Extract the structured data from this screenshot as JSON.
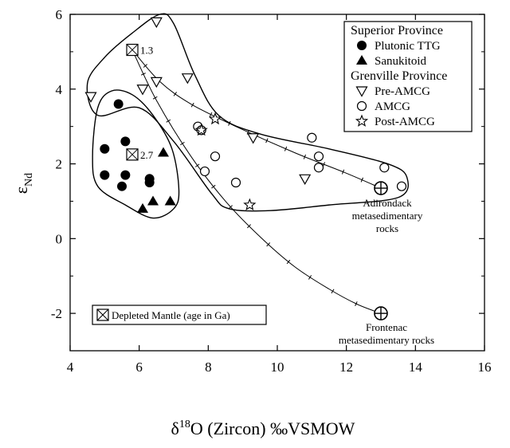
{
  "chart_data": {
    "type": "scatter",
    "xlabel": {
      "prefix": "δ",
      "sup": "18",
      "rest": "O (Zircon) ‰VSMOW"
    },
    "ylabel": {
      "main": "ε",
      "sub": "Nd"
    },
    "xlim": [
      4,
      16
    ],
    "ylim": [
      -3,
      6
    ],
    "x_ticks": [
      4,
      6,
      8,
      10,
      12,
      14,
      16
    ],
    "y_ticks": [
      -2,
      0,
      2,
      4,
      6
    ],
    "y_tick_labels": [
      "-2",
      "0",
      "2",
      "4",
      "6"
    ],
    "legend": {
      "position": "top-right",
      "groups": [
        {
          "title": "Superior Province",
          "items": [
            {
              "label": "Plutonic TTG",
              "marker": "filled-circle"
            },
            {
              "label": "Sanukitoid",
              "marker": "filled-triangle"
            }
          ]
        },
        {
          "title": "Grenville Province",
          "items": [
            {
              "label": "Pre-AMCG",
              "marker": "open-down-triangle"
            },
            {
              "label": "AMCG",
              "marker": "open-circle"
            },
            {
              "label": "Post-AMCG",
              "marker": "open-star"
            }
          ]
        }
      ]
    },
    "series": [
      {
        "name": "Plutonic TTG",
        "marker": "filled-circle",
        "points": [
          [
            5.4,
            3.6
          ],
          [
            5.0,
            2.4
          ],
          [
            5.6,
            2.6
          ],
          [
            5.0,
            1.7
          ],
          [
            5.6,
            1.7
          ],
          [
            5.5,
            1.4
          ],
          [
            6.3,
            1.5
          ],
          [
            6.3,
            1.6
          ]
        ]
      },
      {
        "name": "Sanukitoid",
        "marker": "filled-triangle",
        "points": [
          [
            6.7,
            2.3
          ],
          [
            6.1,
            0.8
          ],
          [
            6.4,
            1.0
          ],
          [
            6.9,
            1.0
          ]
        ]
      },
      {
        "name": "Pre-AMCG",
        "marker": "open-down-triangle",
        "points": [
          [
            4.6,
            3.8
          ],
          [
            6.5,
            5.8
          ],
          [
            6.1,
            4.0
          ],
          [
            6.5,
            4.2
          ],
          [
            7.4,
            4.3
          ],
          [
            9.3,
            2.7
          ],
          [
            10.8,
            1.6
          ]
        ]
      },
      {
        "name": "AMCG",
        "marker": "open-circle",
        "points": [
          [
            7.7,
            3.0
          ],
          [
            7.8,
            2.9
          ],
          [
            7.9,
            1.8
          ],
          [
            8.2,
            2.2
          ],
          [
            8.8,
            1.5
          ],
          [
            11.0,
            2.7
          ],
          [
            11.2,
            2.2
          ],
          [
            11.2,
            1.9
          ],
          [
            13.1,
            1.9
          ],
          [
            13.6,
            1.4
          ]
        ]
      },
      {
        "name": "Post-AMCG",
        "marker": "open-star",
        "points": [
          [
            7.8,
            2.9
          ],
          [
            8.2,
            3.2
          ],
          [
            9.2,
            0.9
          ]
        ]
      }
    ],
    "depleted_mantle_points": [
      {
        "x": 5.8,
        "y": 5.05,
        "label": "1.3"
      },
      {
        "x": 5.8,
        "y": 2.25,
        "label": "2.7"
      }
    ],
    "mixing_curves": [
      {
        "from": "1.3 Ga depleted mantle",
        "to": "Adirondack metasedimentary rocks",
        "points": [
          [
            5.8,
            5.05
          ],
          [
            6.6,
            4.2
          ],
          [
            7.5,
            3.6
          ],
          [
            8.8,
            3.0
          ],
          [
            10.5,
            2.3
          ],
          [
            12.0,
            1.75
          ],
          [
            13.0,
            1.35
          ]
        ]
      },
      {
        "from": "1.3 Ga depleted mantle",
        "to": "Frontenac metasedimentary rocks",
        "points": [
          [
            5.8,
            5.05
          ],
          [
            6.5,
            3.7
          ],
          [
            7.5,
            2.2
          ],
          [
            8.5,
            1.0
          ],
          [
            9.5,
            0.05
          ],
          [
            10.5,
            -0.75
          ],
          [
            11.5,
            -1.35
          ],
          [
            12.3,
            -1.75
          ],
          [
            13.0,
            -2.0
          ]
        ]
      }
    ],
    "endmembers": [
      {
        "name": "Adirondack",
        "x": 13.0,
        "y": 1.35,
        "label_lines": [
          "Adirondack",
          "metasedimentary",
          "rocks"
        ]
      },
      {
        "name": "Frontenac",
        "x": 13.0,
        "y": -2.0,
        "label_lines": [
          "Frontenac",
          "metasedimentary rocks"
        ]
      }
    ],
    "fields": [
      {
        "name": "Superior Province field",
        "outline": [
          [
            4.8,
            3.5
          ],
          [
            5.2,
            3.95
          ],
          [
            5.8,
            3.85
          ],
          [
            6.4,
            3.3
          ],
          [
            6.95,
            2.4
          ],
          [
            7.15,
            1.3
          ],
          [
            7.0,
            0.8
          ],
          [
            6.4,
            0.55
          ],
          [
            5.6,
            0.9
          ],
          [
            4.8,
            1.4
          ],
          [
            4.65,
            2.2
          ]
        ]
      },
      {
        "name": "Grenville Province field",
        "outline": [
          [
            4.5,
            4.15
          ],
          [
            5.0,
            4.85
          ],
          [
            5.8,
            5.5
          ],
          [
            6.6,
            6.0
          ],
          [
            7.0,
            5.75
          ],
          [
            7.6,
            4.4
          ],
          [
            8.3,
            3.3
          ],
          [
            9.5,
            2.8
          ],
          [
            11.5,
            2.4
          ],
          [
            13.2,
            2.0
          ],
          [
            13.75,
            1.65
          ],
          [
            13.5,
            1.1
          ],
          [
            11.5,
            0.9
          ],
          [
            9.8,
            0.75
          ],
          [
            8.6,
            0.8
          ],
          [
            8.1,
            1.2
          ],
          [
            7.0,
            2.6
          ],
          [
            6.0,
            3.5
          ],
          [
            4.8,
            3.3
          ]
        ]
      }
    ],
    "inset_legend": {
      "label": "Depleted Mantle (age in Ga)",
      "marker": "boxed-x",
      "position": "bottom-left"
    }
  }
}
